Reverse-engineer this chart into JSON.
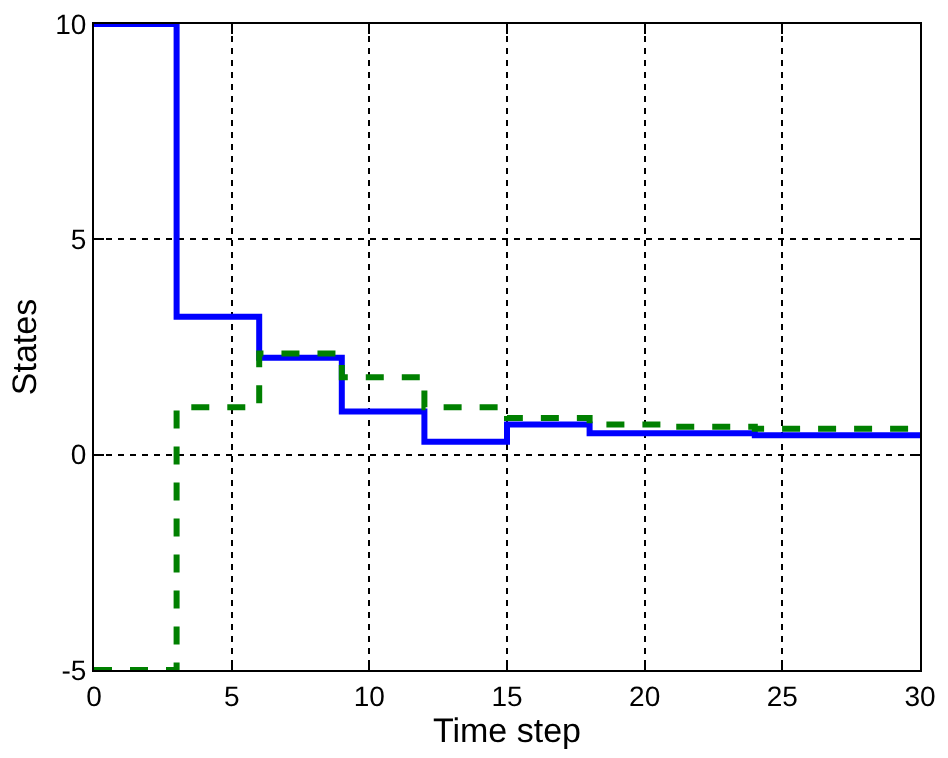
{
  "chart_data": {
    "type": "step",
    "xlabel": "Time step",
    "ylabel": "States",
    "x": [
      0,
      3,
      6,
      9,
      12,
      15,
      18,
      21,
      24,
      27,
      30
    ],
    "series": [
      {
        "color": "#0000ff",
        "line_style": "solid",
        "values": [
          10,
          3.2,
          2.25,
          1.0,
          0.3,
          0.7,
          0.5,
          0.5,
          0.45,
          0.45,
          0.45
        ]
      },
      {
        "color": "#008000",
        "line_style": "dashed",
        "values": [
          -5,
          1.1,
          2.35,
          1.8,
          1.1,
          0.85,
          0.7,
          0.65,
          0.6,
          0.6,
          0.6
        ]
      }
    ],
    "xlim": [
      0,
      30
    ],
    "xticks": [
      0,
      5,
      10,
      15,
      20,
      25,
      30
    ],
    "ylim": [
      -5,
      10
    ],
    "yticks": [
      -5,
      0,
      5,
      10
    ],
    "grid": true,
    "marker": "none"
  }
}
